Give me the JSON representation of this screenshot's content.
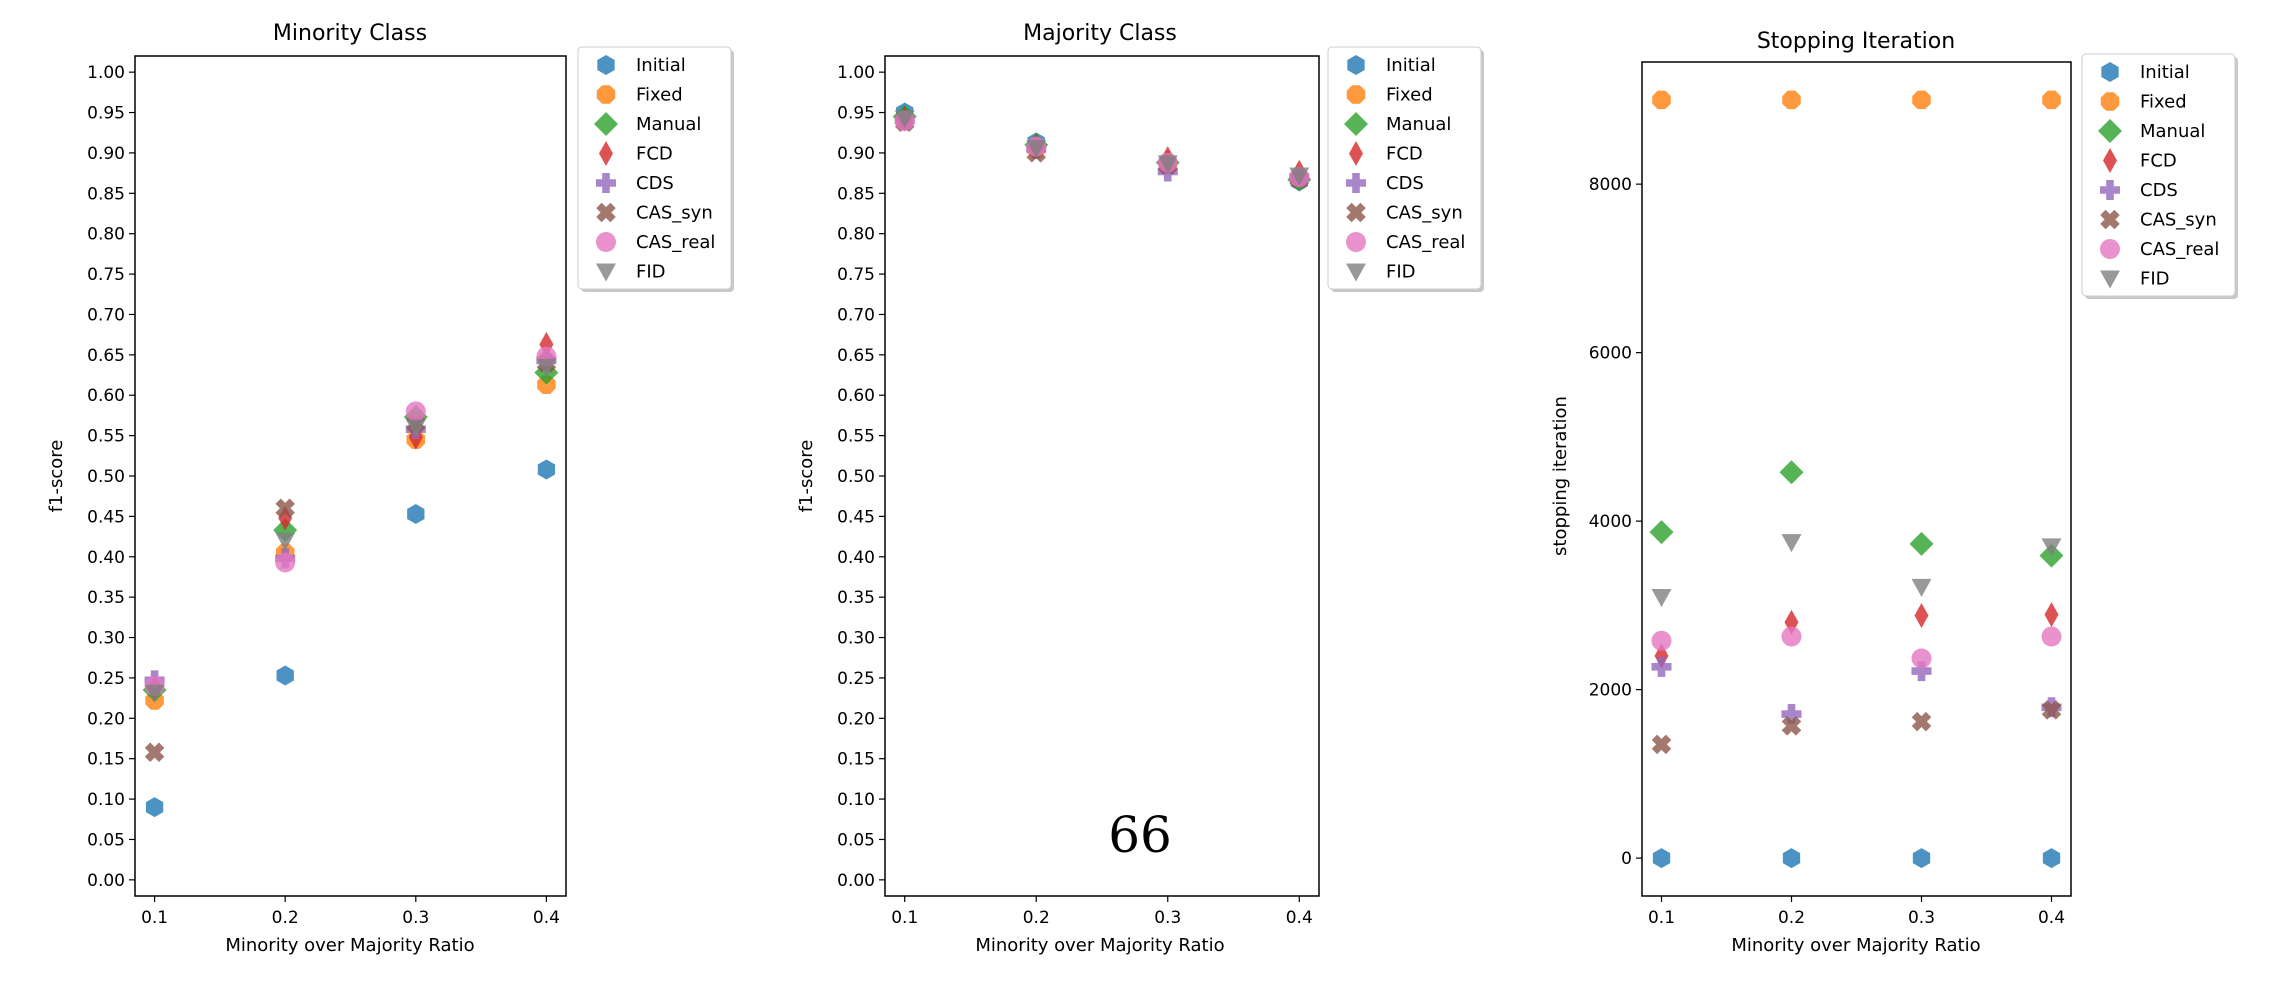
{
  "page_number": "66",
  "colors": {
    "Initial": "#1f77b4",
    "Fixed": "#ff7f0e",
    "Manual": "#2ca02c",
    "FCD": "#d62728",
    "CDS": "#9467bd",
    "CAS_syn": "#8c564b",
    "CAS_real": "#e377c2",
    "FID": "#7f7f7f"
  },
  "markers": {
    "Initial": "hexagon",
    "Fixed": "octagon",
    "Manual": "diamond",
    "FCD": "thin-diamond",
    "CDS": "plus",
    "CAS_syn": "x",
    "CAS_real": "circle",
    "FID": "triangle-down"
  },
  "chart_data": [
    {
      "type": "scatter",
      "title": "Minority Class",
      "xlabel": "Minority over Majority Ratio",
      "ylabel": "f1-score",
      "x": [
        0.1,
        0.2,
        0.3,
        0.4
      ],
      "xticks": [
        "0.1",
        "0.2",
        "0.3",
        "0.4"
      ],
      "xlim": [
        0.085,
        0.415
      ],
      "ylim": [
        -0.02,
        1.02
      ],
      "yticks": [
        "0.00",
        "0.05",
        "0.10",
        "0.15",
        "0.20",
        "0.25",
        "0.30",
        "0.35",
        "0.40",
        "0.45",
        "0.50",
        "0.55",
        "0.60",
        "0.65",
        "0.70",
        "0.75",
        "0.80",
        "0.85",
        "0.90",
        "0.95",
        "1.00"
      ],
      "grid": false,
      "legend": "outside-top-right",
      "series": [
        {
          "name": "Initial",
          "values": [
            0.09,
            0.253,
            0.453,
            0.508
          ]
        },
        {
          "name": "Fixed",
          "values": [
            0.222,
            0.405,
            0.545,
            0.613
          ]
        },
        {
          "name": "Manual",
          "values": [
            0.235,
            0.433,
            0.573,
            0.628
          ]
        },
        {
          "name": "FCD",
          "values": [
            0.238,
            0.448,
            0.548,
            0.663
          ]
        },
        {
          "name": "CDS",
          "values": [
            0.247,
            0.398,
            0.558,
            0.643
          ]
        },
        {
          "name": "CAS_syn",
          "values": [
            0.158,
            0.46,
            0.565,
            0.64
          ]
        },
        {
          "name": "CAS_real",
          "values": [
            0.24,
            0.393,
            0.58,
            0.648
          ]
        },
        {
          "name": "FID",
          "values": [
            0.232,
            0.42,
            0.56,
            0.635
          ]
        }
      ]
    },
    {
      "type": "scatter",
      "title": "Majority Class",
      "xlabel": "Minority over Majority Ratio",
      "ylabel": "f1-score",
      "x": [
        0.1,
        0.2,
        0.3,
        0.4
      ],
      "xticks": [
        "0.1",
        "0.2",
        "0.3",
        "0.4"
      ],
      "xlim": [
        0.085,
        0.415
      ],
      "ylim": [
        -0.02,
        1.02
      ],
      "yticks": [
        "0.00",
        "0.05",
        "0.10",
        "0.15",
        "0.20",
        "0.25",
        "0.30",
        "0.35",
        "0.40",
        "0.45",
        "0.50",
        "0.55",
        "0.60",
        "0.65",
        "0.70",
        "0.75",
        "0.80",
        "0.85",
        "0.90",
        "0.95",
        "1.00"
      ],
      "grid": false,
      "legend": "outside-top-right",
      "series": [
        {
          "name": "Initial",
          "values": [
            0.95,
            0.913,
            0.887,
            0.865
          ]
        },
        {
          "name": "Fixed",
          "values": [
            0.94,
            0.905,
            0.885,
            0.868
          ]
        },
        {
          "name": "Manual",
          "values": [
            0.945,
            0.91,
            0.888,
            0.867
          ]
        },
        {
          "name": "FCD",
          "values": [
            0.942,
            0.908,
            0.893,
            0.876
          ]
        },
        {
          "name": "CDS",
          "values": [
            0.94,
            0.905,
            0.877,
            0.87
          ]
        },
        {
          "name": "CAS_syn",
          "values": [
            0.938,
            0.9,
            0.885,
            0.868
          ]
        },
        {
          "name": "CAS_real",
          "values": [
            0.94,
            0.908,
            0.888,
            0.87
          ]
        },
        {
          "name": "FID",
          "values": [
            0.943,
            0.906,
            0.887,
            0.872
          ]
        }
      ]
    },
    {
      "type": "scatter",
      "title": "Stopping Iteration",
      "xlabel": "Minority over Majority Ratio",
      "ylabel": "stopping iteration",
      "x": [
        0.1,
        0.2,
        0.3,
        0.4
      ],
      "xticks": [
        "0.1",
        "0.2",
        "0.3",
        "0.4"
      ],
      "xlim": [
        0.085,
        0.415
      ],
      "ylim": [
        -450,
        9450
      ],
      "yticks": [
        "0",
        "2000",
        "4000",
        "6000",
        "8000"
      ],
      "grid": false,
      "legend": "outside-top-right",
      "series": [
        {
          "name": "Initial",
          "values": [
            0,
            0,
            0,
            0
          ]
        },
        {
          "name": "Fixed",
          "values": [
            9000,
            9000,
            9000,
            9000
          ]
        },
        {
          "name": "Manual",
          "values": [
            3870,
            4580,
            3730,
            3590
          ]
        },
        {
          "name": "FCD",
          "values": [
            2400,
            2800,
            2880,
            2890
          ]
        },
        {
          "name": "CDS",
          "values": [
            2270,
            1710,
            2220,
            1790
          ]
        },
        {
          "name": "CAS_syn",
          "values": [
            1350,
            1570,
            1620,
            1760
          ]
        },
        {
          "name": "CAS_real",
          "values": [
            2580,
            2630,
            2370,
            2630
          ]
        },
        {
          "name": "FID",
          "values": [
            3100,
            3750,
            3220,
            3700
          ]
        }
      ]
    }
  ]
}
